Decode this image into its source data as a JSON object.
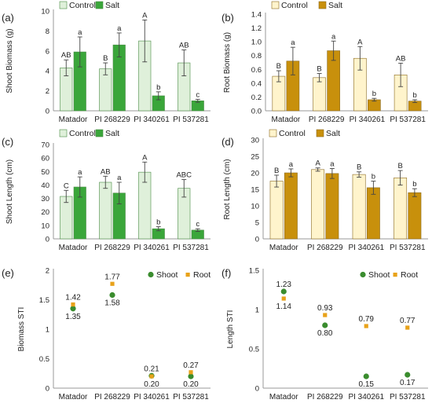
{
  "colors": {
    "shoot_control": "#dff0da",
    "shoot_salt": "#3aa63a",
    "root_control": "#fff4cc",
    "root_salt": "#c8900c",
    "bar_stroke_shoot": "#4a8a45",
    "bar_stroke_root": "#8a6a20",
    "shoot_dot": "#3a8c2e",
    "root_dot": "#e8a21a"
  },
  "chart_data": [
    {
      "id": "a",
      "type": "bar",
      "panel_label": "(a)",
      "ylabel": "Shoot Biomass (g)",
      "ylim": [
        0,
        10
      ],
      "yticks": [
        "0",
        "2",
        "4",
        "6",
        "8",
        "10"
      ],
      "categories": [
        "Matador",
        "PI 268229",
        "PI 340261",
        "PI 537281"
      ],
      "legend": "top-left",
      "series": [
        {
          "name": "Control",
          "values": [
            4.3,
            4.2,
            7.0,
            4.8
          ],
          "errors": [
            0.8,
            0.6,
            2.1,
            1.3
          ],
          "letters": [
            "AB",
            "B",
            "A",
            "AB"
          ]
        },
        {
          "name": "Salt",
          "values": [
            5.9,
            6.6,
            1.5,
            1.0
          ],
          "errors": [
            1.5,
            1.2,
            0.4,
            0.15
          ],
          "letters": [
            "a",
            "a",
            "b",
            "c"
          ]
        }
      ]
    },
    {
      "id": "b",
      "type": "bar",
      "panel_label": "(b)",
      "ylabel": "Root Biomass (g)",
      "ylim": [
        0,
        1.4
      ],
      "yticks": [
        "0.0",
        "0.2",
        "0.4",
        "0.6",
        "0.8",
        "1.0",
        "1.2",
        "1.4"
      ],
      "categories": [
        "Matador",
        "PI 268229",
        "PI 340261",
        "PI 537281"
      ],
      "legend": "top-left",
      "series": [
        {
          "name": "Control",
          "values": [
            0.5,
            0.48,
            0.76,
            0.52
          ],
          "errors": [
            0.08,
            0.06,
            0.17,
            0.17
          ],
          "letters": [
            "B",
            "B",
            "A",
            "AB"
          ]
        },
        {
          "name": "Salt",
          "values": [
            0.72,
            0.87,
            0.16,
            0.14
          ],
          "errors": [
            0.2,
            0.14,
            0.02,
            0.02
          ],
          "letters": [
            "a",
            "a",
            "b",
            "b"
          ]
        }
      ]
    },
    {
      "id": "c",
      "type": "bar",
      "panel_label": "(c)",
      "ylabel": "Shoot Length (cm)",
      "ylim": [
        0,
        70
      ],
      "yticks": [
        "0",
        "10",
        "20",
        "30",
        "40",
        "50",
        "60",
        "70"
      ],
      "categories": [
        "Matador",
        "PI 268229",
        "PI 340261",
        "PI 537281"
      ],
      "legend": "top-left",
      "series": [
        {
          "name": "Control",
          "values": [
            31.5,
            42.0,
            49.5,
            37.5
          ],
          "errors": [
            4.5,
            4.5,
            7.5,
            6.5
          ],
          "letters": [
            "C",
            "AB",
            "A",
            "ABC"
          ]
        },
        {
          "name": "Salt",
          "values": [
            38.5,
            34.0,
            7.5,
            6.5
          ],
          "errors": [
            7.5,
            8.0,
            1.5,
            1.0
          ],
          "letters": [
            "a",
            "a",
            "b",
            "c"
          ]
        }
      ]
    },
    {
      "id": "d",
      "type": "bar",
      "panel_label": "(d)",
      "ylabel": "Root Length (cm)",
      "ylim": [
        0,
        30
      ],
      "yticks": [
        "0",
        "5",
        "10",
        "15",
        "20",
        "25",
        "30"
      ],
      "categories": [
        "Matador",
        "PI 268229",
        "PI 340261",
        "PI 537281"
      ],
      "legend": "top-left",
      "series": [
        {
          "name": "Control",
          "values": [
            17.5,
            21.0,
            19.5,
            18.5
          ],
          "errors": [
            1.8,
            0.5,
            0.8,
            2.2
          ],
          "letters": [
            "B",
            "A",
            "B",
            "B"
          ]
        },
        {
          "name": "Salt",
          "values": [
            20.0,
            19.8,
            15.5,
            14.0
          ],
          "errors": [
            1.2,
            1.5,
            2.0,
            1.2
          ],
          "letters": [
            "a",
            "a",
            "b",
            "b"
          ]
        }
      ]
    },
    {
      "id": "e",
      "type": "scatter",
      "panel_label": "(e)",
      "ylabel": "Biomass STI",
      "ylim": [
        0,
        2
      ],
      "yticks": [
        "0",
        "0.5",
        "1",
        "1.5",
        "2"
      ],
      "categories": [
        "Matador",
        "PI 268229",
        "PI 340261",
        "PI 537281"
      ],
      "legend": "top-right",
      "series": [
        {
          "name": "Shoot",
          "marker": "circle",
          "values": [
            1.35,
            1.58,
            0.21,
            0.2
          ],
          "labels": [
            "1.35",
            "1.58",
            "0.21",
            "0.20"
          ]
        },
        {
          "name": "Root",
          "marker": "square",
          "values": [
            1.42,
            1.77,
            0.2,
            0.27
          ],
          "labels": [
            "1.42",
            "1.77",
            "0.20",
            "0.27"
          ]
        }
      ]
    },
    {
      "id": "f",
      "type": "scatter",
      "panel_label": "(f)",
      "ylabel": "Length STI",
      "ylim": [
        0,
        1.5
      ],
      "yticks": [
        "0",
        "0.5",
        "1",
        "1.5"
      ],
      "categories": [
        "Matador",
        "PI 268229",
        "PI 340261",
        "PI 537281"
      ],
      "legend": "top-right",
      "series": [
        {
          "name": "Shoot",
          "marker": "circle",
          "values": [
            1.23,
            0.8,
            0.15,
            0.17
          ],
          "labels": [
            "1.23",
            "0.80",
            "0.15",
            "0.17"
          ]
        },
        {
          "name": "Root",
          "marker": "square",
          "values": [
            1.14,
            0.93,
            0.79,
            0.77
          ],
          "labels": [
            "1.14",
            "0.93",
            "0.79",
            "0.77"
          ]
        }
      ]
    }
  ]
}
